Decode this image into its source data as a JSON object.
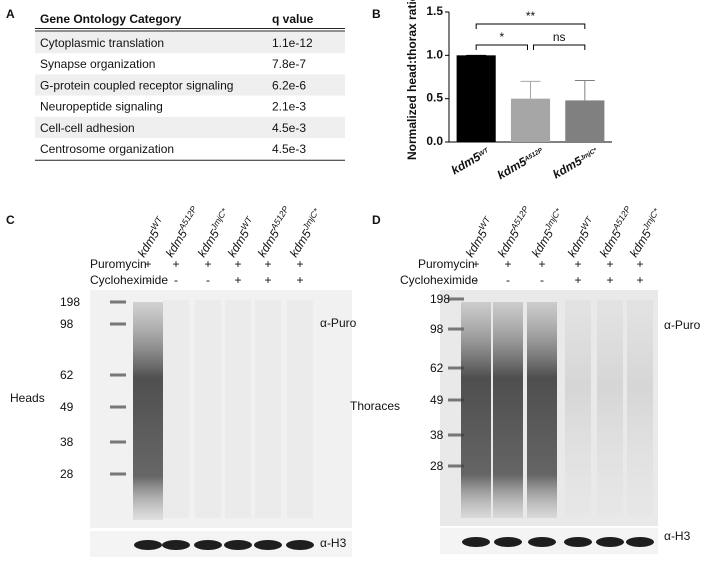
{
  "panel_labels": [
    "A",
    "B",
    "C",
    "D"
  ],
  "go_table": {
    "header": [
      "Gene Ontology Category",
      "q value"
    ],
    "rows": [
      [
        "Cytoplasmic translation",
        "1.1e-12"
      ],
      [
        "Synapse organization",
        "7.8e-7"
      ],
      [
        "G-protein coupled receptor signaling",
        "6.2e-6"
      ],
      [
        "Neuropeptide signaling",
        "2.1e-3"
      ],
      [
        "Cell-cell adhesion",
        "4.5e-3"
      ],
      [
        "Centrosome organization",
        "4.5e-3"
      ]
    ]
  },
  "chart_data": {
    "type": "bar",
    "ylabel": "Normalized head:thorax ratio",
    "categories": [
      {
        "base": "kdm5",
        "sup": "WT"
      },
      {
        "base": "kdm5",
        "sup": "A512P"
      },
      {
        "base": "kdm5",
        "sup": "JmjC*"
      }
    ],
    "values": [
      1.0,
      0.5,
      0.48
    ],
    "errors": [
      0,
      0.2,
      0.23
    ],
    "colors": [
      "#000000",
      "#a6a6a6",
      "#808080"
    ],
    "ylim": [
      0,
      1.5
    ],
    "yticks": [
      {
        "value": 0,
        "label": "0.0"
      },
      {
        "value": 0.5,
        "label": "0.5"
      },
      {
        "value": 1,
        "label": "1.0"
      },
      {
        "value": 1.5,
        "label": "1.5"
      }
    ],
    "significance": [
      "*",
      "ns",
      "**"
    ]
  },
  "blots": [
    {
      "tissue": "Heads",
      "lanes": [
        {
          "base": "kdm5",
          "sup": "WT"
        },
        {
          "base": "kdm5",
          "sup": "A512P"
        },
        {
          "base": "kdm5",
          "sup": "JmjC*"
        },
        {
          "base": "kdm5",
          "sup": "WT"
        },
        {
          "base": "kdm5",
          "sup": "A512P"
        },
        {
          "base": "kdm5",
          "sup": "JmjC*"
        }
      ],
      "treatments": [
        {
          "name": "Puromycin",
          "signs": [
            "+",
            "+",
            "+",
            "+",
            "+",
            "+"
          ]
        },
        {
          "name": "Cycloheximide",
          "signs": [
            "-",
            "-",
            "-",
            "+",
            "+",
            "+"
          ]
        }
      ],
      "markers": [
        "198",
        "98",
        "62",
        "49",
        "38",
        "28"
      ],
      "antibodies": [
        "α-Puro",
        "α-H3"
      ]
    },
    {
      "tissue": "Thoraces",
      "lanes": [
        {
          "base": "kdm5",
          "sup": "WT"
        },
        {
          "base": "kdm5",
          "sup": "A512P"
        },
        {
          "base": "kdm5",
          "sup": "JmjC*"
        },
        {
          "base": "kdm5",
          "sup": "WT"
        },
        {
          "base": "kdm5",
          "sup": "A512P"
        },
        {
          "base": "kdm5",
          "sup": "JmjC*"
        }
      ],
      "treatments": [
        {
          "name": "Puromycin",
          "signs": [
            "+",
            "+",
            "+",
            "+",
            "+",
            "+"
          ]
        },
        {
          "name": "Cycloheximide",
          "signs": [
            "-",
            "-",
            "-",
            "+",
            "+",
            "+"
          ]
        }
      ],
      "markers": [
        "198",
        "98",
        "62",
        "49",
        "38",
        "28"
      ],
      "antibodies": [
        "α-Puro",
        "α-H3"
      ]
    }
  ]
}
